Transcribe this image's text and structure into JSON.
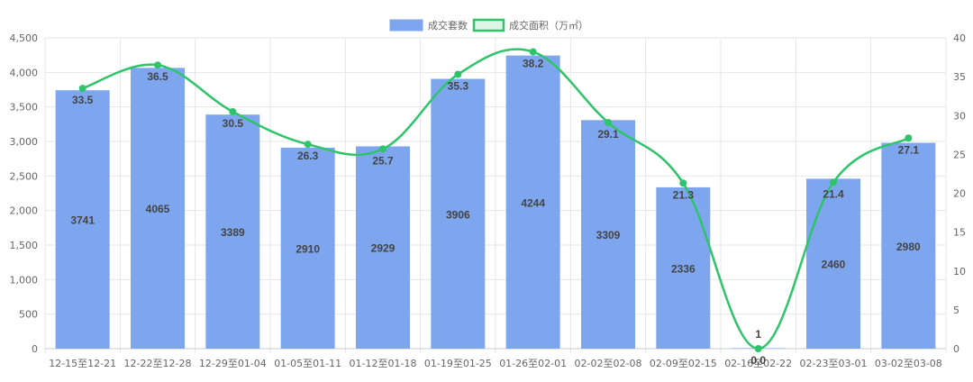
{
  "chart_data": {
    "type": "bar",
    "categories": [
      "12-15至12-21",
      "12-22至12-28",
      "12-29至01-04",
      "01-05至01-11",
      "01-12至01-18",
      "01-19至01-25",
      "01-26至02-01",
      "02-02至02-08",
      "02-09至02-15",
      "02-16至02-22",
      "02-23至03-01",
      "03-02至03-08"
    ],
    "series": [
      {
        "name": "成交套数",
        "type": "bar",
        "axis": "left",
        "color": "#7ea6ee",
        "values": [
          3741,
          4065,
          3389,
          2910,
          2929,
          3906,
          4244,
          3309,
          2336,
          1,
          2460,
          2980
        ]
      },
      {
        "name": "成交面积（万㎡）",
        "type": "line",
        "axis": "right",
        "color": "#2ec46a",
        "values": [
          33.5,
          36.5,
          30.5,
          26.3,
          25.7,
          35.3,
          38.2,
          29.1,
          21.3,
          0.0,
          21.4,
          27.1
        ]
      }
    ],
    "y_left": {
      "min": 0,
      "max": 4500,
      "ticks": [
        "0",
        "500",
        "1,000",
        "1,500",
        "2,000",
        "2,500",
        "3,000",
        "3,500",
        "4,000",
        "4,500"
      ]
    },
    "y_right": {
      "min": 0,
      "max": 40,
      "ticks": [
        "0",
        "5",
        "10",
        "15",
        "20",
        "25",
        "30",
        "35",
        "40"
      ]
    },
    "grid": true,
    "legend_position": "top-center"
  }
}
